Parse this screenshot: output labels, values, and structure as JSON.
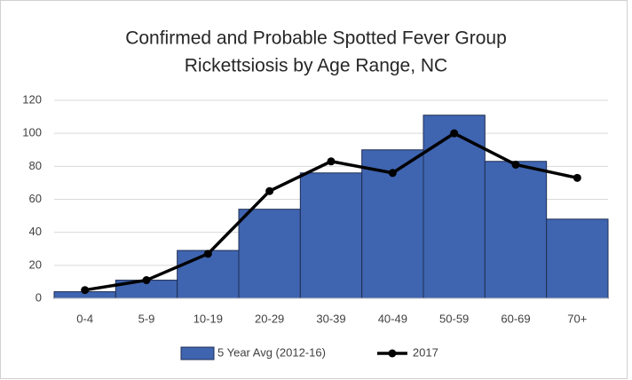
{
  "chart_data": {
    "type": "combo",
    "title": [
      "Confirmed and Probable Spotted Fever Group",
      "Rickettsiosis by Age Range, NC"
    ],
    "categories": [
      "0-4",
      "5-9",
      "10-19",
      "20-29",
      "30-39",
      "40-49",
      "50-59",
      "60-69",
      "70+"
    ],
    "series": [
      {
        "name": "5 Year Avg (2012-16)",
        "type": "bar",
        "color": "#3f64b0",
        "values": [
          4,
          11,
          29,
          54,
          76,
          90,
          111,
          83,
          48
        ]
      },
      {
        "name": "2017",
        "type": "line",
        "color": "#000000",
        "values": [
          5,
          11,
          27,
          65,
          83,
          76,
          100,
          81,
          73
        ]
      }
    ],
    "ylim": [
      0,
      120
    ],
    "yticks": [
      0,
      20,
      40,
      60,
      80,
      100,
      120
    ],
    "grid": true,
    "legend": "bottom"
  }
}
